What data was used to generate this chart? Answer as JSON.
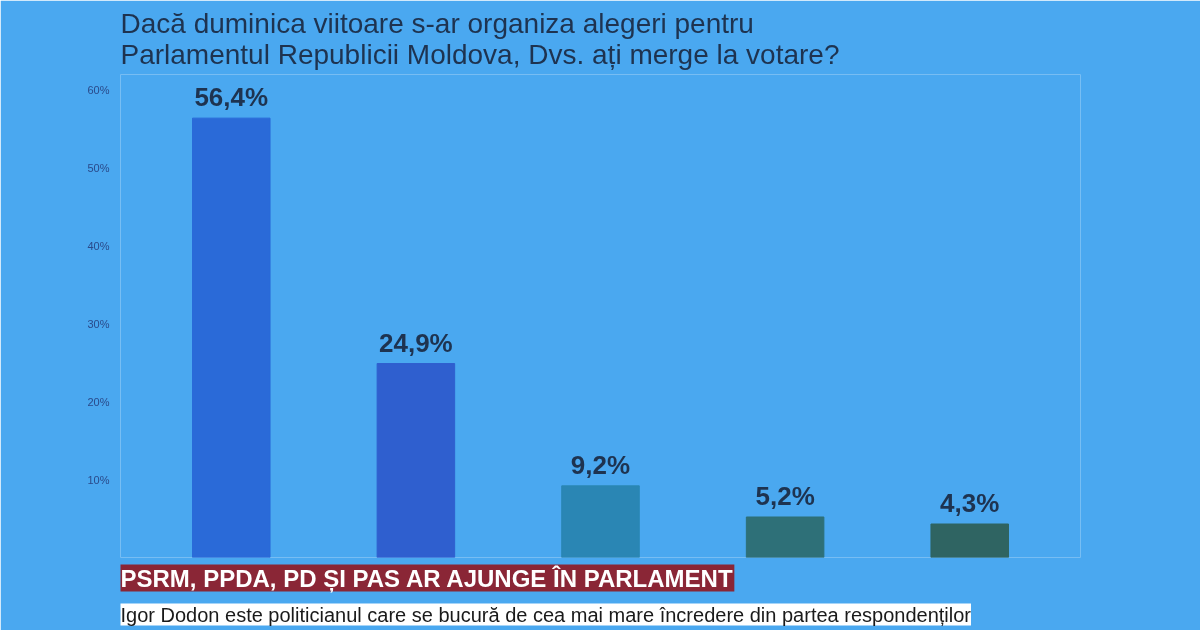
{
  "chart_data": {
    "type": "bar",
    "title": "Dacă duminica viitoare s-ar organiza alegeri pentru\nParlamentul Republicii Moldova, Dvs. ați merge la votare?",
    "categories": [
      null,
      null,
      null,
      null,
      null
    ],
    "values": [
      56.4,
      24.9,
      9.2,
      5.2,
      4.3
    ],
    "colors": [
      "#2a6ad8",
      "#2f5fcf",
      "#2a86b4",
      "#2e7078",
      "#2f6462"
    ],
    "value_labels": [
      "56,4%",
      "24,9%",
      "9,2%",
      "5,2%",
      "4,3%"
    ],
    "ylim": [
      0,
      62
    ],
    "yticks": [
      {
        "value": 10,
        "label": "10%"
      },
      {
        "value": 20,
        "label": "20%"
      },
      {
        "value": 30,
        "label": "30%"
      },
      {
        "value": 40,
        "label": "40%"
      },
      {
        "value": 50,
        "label": "50%"
      },
      {
        "value": 60,
        "label": "60%"
      }
    ],
    "grid": false,
    "annotations": [
      "PSRM, PPDA, PD ȘI PAS AR AJUNGE ÎN PARLAMENT",
      "Igor Dodon este politicianul care se bucură de cea mai mare încredere din partea respondenților"
    ]
  }
}
